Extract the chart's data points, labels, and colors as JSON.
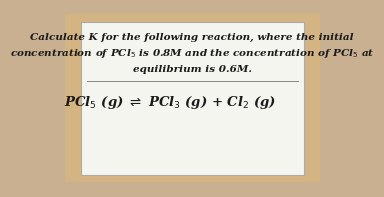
{
  "bg_outer": "#d4b483",
  "bg_card": "#f5f5f0",
  "bg_figure": "#c8b090",
  "title_line1": "Calculate K for the following reaction, where the initial",
  "title_line2": "concentration of PCl$_5$ is 0.8M and the concentration of PCl$_5$ at",
  "title_line3": "equilibrium is 0.6M.",
  "reaction_text": "PCl$_5$ (g) $\\rightleftharpoons$ PCl$_3$ (g) + Cl$_2$ (g)",
  "text_color": "#1a1a1a",
  "line_color": "#888888",
  "font_size_title": 7.5,
  "font_size_reaction": 9.5
}
